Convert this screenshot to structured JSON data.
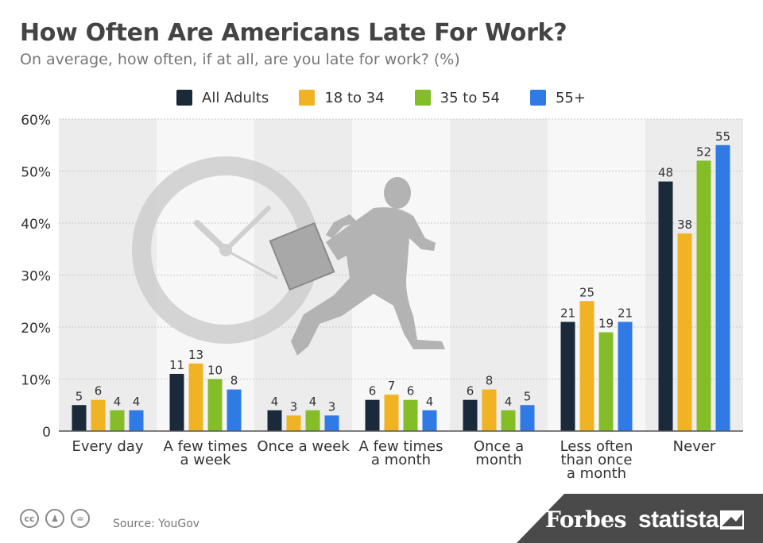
{
  "header": {
    "title": "How Often Are Americans Late For Work?",
    "subtitle": "On average, how often, if at all, are you late for work? (%)"
  },
  "footer": {
    "source": "Source: YouGov",
    "brand_forbes": "Forbes",
    "brand_statista": "statista",
    "cc_icons": [
      "cc",
      "by",
      "nd"
    ]
  },
  "chart_data": {
    "type": "bar",
    "title": "How Often Are Americans Late For Work?",
    "subtitle": "On average, how often, if at all, are you late for work? (%)",
    "categories": [
      [
        "Every day"
      ],
      [
        "A few times",
        "a week"
      ],
      [
        "Once a week"
      ],
      [
        "A few times",
        "a month"
      ],
      [
        "Once a",
        "month"
      ],
      [
        "Less often",
        "than once",
        "a month"
      ],
      [
        "Never"
      ]
    ],
    "series": [
      {
        "name": "All Adults",
        "color": "#1a2a3a",
        "values": [
          5,
          11,
          4,
          6,
          6,
          21,
          48
        ]
      },
      {
        "name": "18 to 34",
        "color": "#f0b323",
        "values": [
          6,
          13,
          3,
          7,
          8,
          25,
          38
        ]
      },
      {
        "name": "35 to 54",
        "color": "#85bd28",
        "values": [
          4,
          10,
          4,
          6,
          4,
          19,
          52
        ]
      },
      {
        "name": "55+",
        "color": "#2f7ae5",
        "values": [
          4,
          8,
          3,
          4,
          5,
          21,
          55
        ]
      }
    ],
    "yticks": [
      "0",
      "10%",
      "20%",
      "30%",
      "40%",
      "50%",
      "60%"
    ],
    "ylim": [
      0,
      60
    ],
    "xlabel": "",
    "ylabel": "",
    "grid": true,
    "legend_position": "top",
    "band_colors": [
      "#ececec",
      "#f7f7f7"
    ]
  }
}
